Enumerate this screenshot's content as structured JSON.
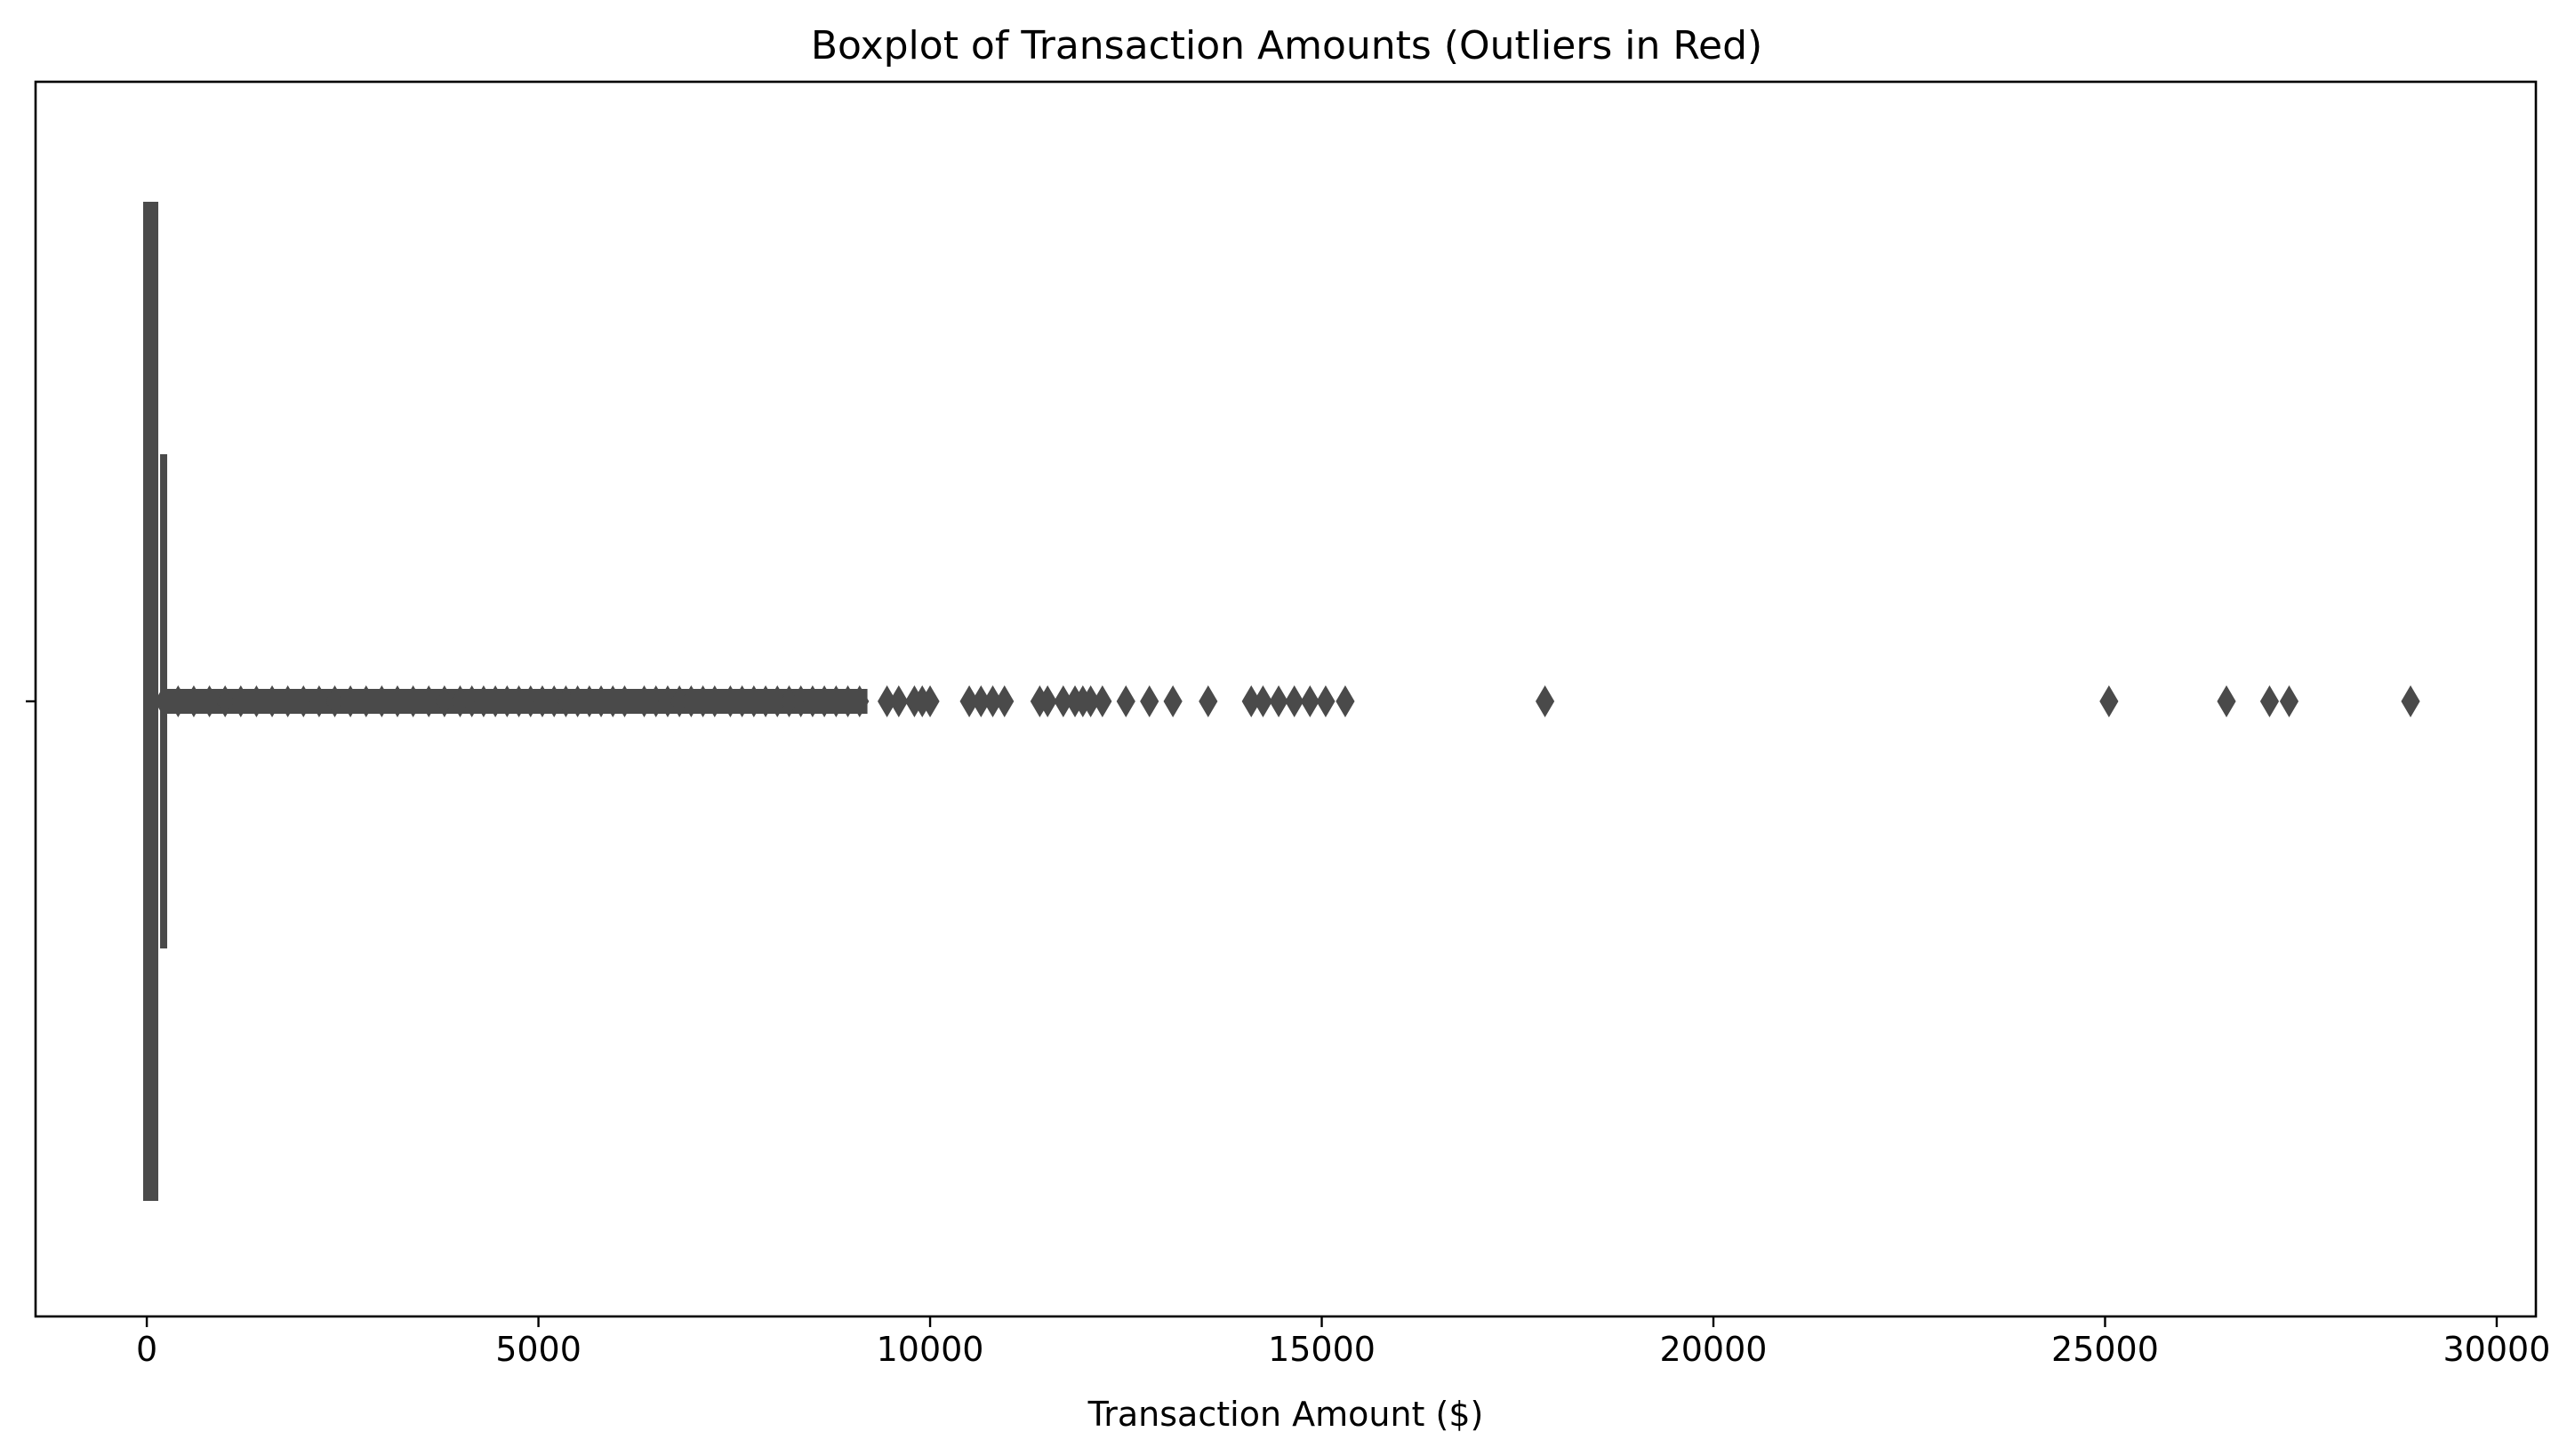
{
  "chart_data": {
    "type": "boxplot",
    "orientation": "horizontal",
    "title": "Boxplot of Transaction Amounts (Outliers in Red)",
    "xlabel": "Transaction Amount ($)",
    "ylabel": "",
    "xlim": [
      -1420,
      30500
    ],
    "xticks": [
      0,
      5000,
      10000,
      15000,
      20000,
      25000,
      30000
    ],
    "xtick_labels": [
      "0",
      "5000",
      "10000",
      "15000",
      "20000",
      "25000",
      "30000"
    ],
    "grid": false,
    "colors": {
      "box": "#4a4a4a",
      "outlier": "#4a4a4a"
    },
    "box": {
      "whisker_low": 0,
      "q1": 10,
      "median": 50,
      "q3": 90,
      "whisker_high": 215,
      "dense_outlier_band": [
        215,
        9200
      ]
    },
    "outliers": [
      220,
      400,
      600,
      800,
      1000,
      1200,
      1400,
      1600,
      1800,
      2000,
      2200,
      2400,
      2600,
      2800,
      3000,
      3200,
      3400,
      3600,
      3800,
      4000,
      4150,
      4300,
      4450,
      4600,
      4750,
      4900,
      5050,
      5200,
      5350,
      5500,
      5650,
      5800,
      5950,
      6100,
      6350,
      6500,
      6650,
      6800,
      6950,
      7100,
      7250,
      7450,
      7600,
      7750,
      7900,
      8050,
      8200,
      8350,
      8500,
      8650,
      8800,
      8950,
      9100,
      9450,
      9600,
      9800,
      9900,
      10000,
      10500,
      10650,
      10800,
      10950,
      11400,
      11500,
      11700,
      11850,
      11950,
      12050,
      12200,
      12500,
      12800,
      13100,
      13550,
      14100,
      14250,
      14450,
      14650,
      14850,
      15050,
      15300,
      17850,
      25050,
      26550,
      27100,
      27350,
      28900
    ]
  }
}
